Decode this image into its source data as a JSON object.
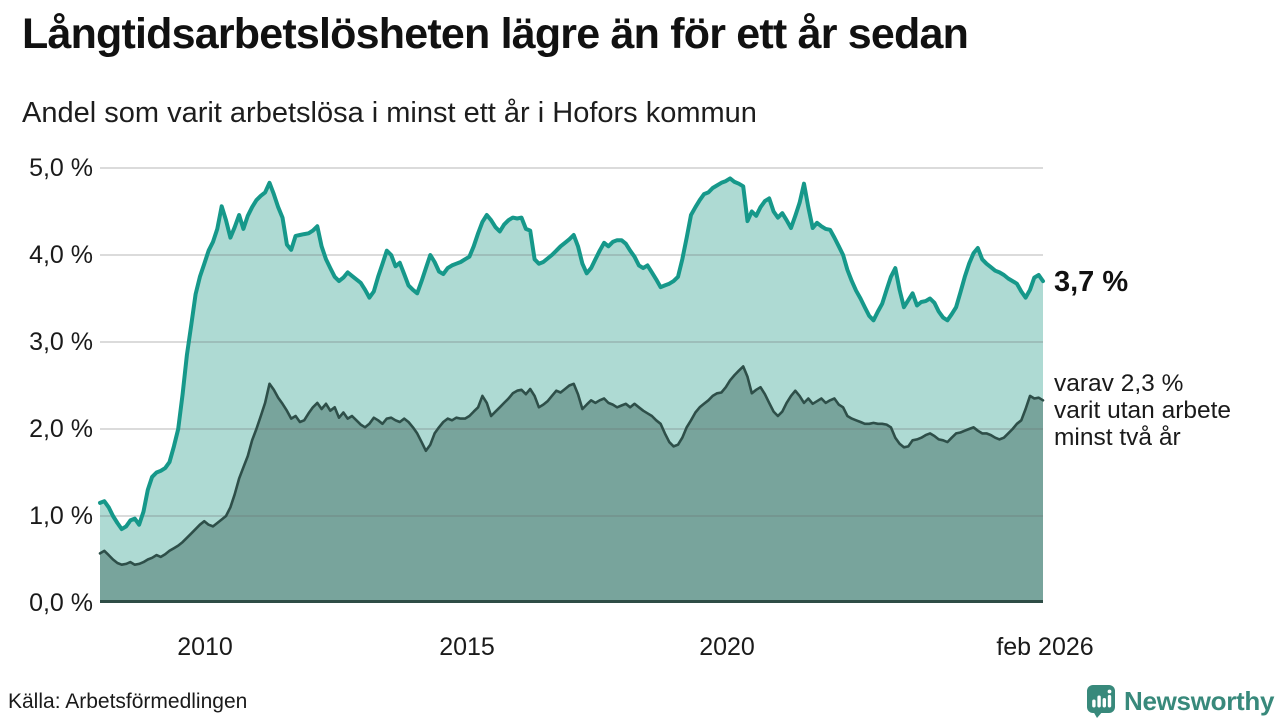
{
  "title": "Långtidsarbetslösheten lägre än för ett år sedan",
  "subtitle": "Andel som varit arbetslösa i minst ett år i Hofors kommun",
  "source": "Källa: Arbetsförmedlingen",
  "logo": {
    "text": "Newsworthy",
    "color": "#38897b"
  },
  "annotations": {
    "latest_value": "3,7 %",
    "breakdown_line1": "varav 2,3 %",
    "breakdown_line2": "varit utan arbete",
    "breakdown_line3": "minst två år"
  },
  "chart_data": {
    "type": "area",
    "title": "Andel som varit arbetslösa i minst ett år i Hofors kommun",
    "unit": "%",
    "x_frequency": "monthly",
    "x_start": "2008-01",
    "x_end": "2026-02",
    "x_domain": [
      2008.0,
      2026.0833
    ],
    "ylim": [
      0,
      5
    ],
    "grid": true,
    "y_ticks": [
      "5,0 %",
      "4,0 %",
      "3,0 %",
      "2,0 %",
      "1,0 %",
      "0,0 %"
    ],
    "x_ticks": [
      {
        "label": "2010",
        "t": 2010.0
      },
      {
        "label": "2015",
        "t": 2015.0
      },
      {
        "label": "2020",
        "t": 2020.0
      },
      {
        "label": "feb 2026",
        "t": 2026.0833
      }
    ],
    "axis_color": "#2e4d46",
    "grid_color": "#6d6d6d",
    "series": [
      {
        "name": "Arbetslösa minst ett år",
        "color": "#16988a",
        "fill": "#aedad3",
        "latest": 3.7,
        "values": [
          1.15,
          1.17,
          1.1,
          1.0,
          0.92,
          0.85,
          0.88,
          0.95,
          0.97,
          0.9,
          1.05,
          1.3,
          1.45,
          1.5,
          1.52,
          1.55,
          1.62,
          1.8,
          2.0,
          2.4,
          2.85,
          3.2,
          3.55,
          3.75,
          3.9,
          4.05,
          4.15,
          4.3,
          4.56,
          4.4,
          4.2,
          4.32,
          4.46,
          4.3,
          4.45,
          4.55,
          4.63,
          4.68,
          4.72,
          4.83,
          4.7,
          4.55,
          4.43,
          4.12,
          4.06,
          4.22,
          4.23,
          4.24,
          4.25,
          4.28,
          4.33,
          4.1,
          3.95,
          3.85,
          3.75,
          3.7,
          3.74,
          3.8,
          3.76,
          3.72,
          3.68,
          3.6,
          3.51,
          3.58,
          3.75,
          3.9,
          4.05,
          4.0,
          3.87,
          3.91,
          3.78,
          3.65,
          3.6,
          3.56,
          3.7,
          3.85,
          4.0,
          3.92,
          3.81,
          3.78,
          3.85,
          3.88,
          3.9,
          3.92,
          3.95,
          3.98,
          4.1,
          4.25,
          4.38,
          4.46,
          4.4,
          4.32,
          4.27,
          4.35,
          4.4,
          4.43,
          4.42,
          4.43,
          4.3,
          4.28,
          3.95,
          3.9,
          3.92,
          3.96,
          4.0,
          4.05,
          4.1,
          4.14,
          4.18,
          4.23,
          4.1,
          3.9,
          3.79,
          3.85,
          3.95,
          4.05,
          4.14,
          4.1,
          4.15,
          4.17,
          4.17,
          4.13,
          4.05,
          3.98,
          3.88,
          3.85,
          3.88,
          3.8,
          3.72,
          3.63,
          3.65,
          3.67,
          3.7,
          3.75,
          3.95,
          4.2,
          4.46,
          4.55,
          4.63,
          4.7,
          4.72,
          4.77,
          4.8,
          4.83,
          4.85,
          4.88,
          4.84,
          4.82,
          4.79,
          4.39,
          4.5,
          4.45,
          4.55,
          4.62,
          4.65,
          4.5,
          4.43,
          4.48,
          4.4,
          4.31,
          4.45,
          4.6,
          4.82,
          4.55,
          4.31,
          4.37,
          4.33,
          4.3,
          4.29,
          4.2,
          4.1,
          4.0,
          3.83,
          3.7,
          3.59,
          3.5,
          3.4,
          3.3,
          3.25,
          3.35,
          3.44,
          3.6,
          3.75,
          3.85,
          3.6,
          3.4,
          3.48,
          3.56,
          3.42,
          3.46,
          3.47,
          3.5,
          3.45,
          3.35,
          3.28,
          3.25,
          3.32,
          3.4,
          3.57,
          3.75,
          3.9,
          4.02,
          4.08,
          3.95,
          3.9,
          3.86,
          3.82,
          3.8,
          3.77,
          3.73,
          3.7,
          3.67,
          3.58,
          3.51,
          3.6,
          3.74,
          3.77,
          3.7
        ]
      },
      {
        "name": "Varav utan arbete minst två år",
        "color": "#2e4f49",
        "fill": "#78a49c",
        "latest": 2.3,
        "values": [
          0.57,
          0.6,
          0.55,
          0.5,
          0.46,
          0.44,
          0.45,
          0.47,
          0.44,
          0.45,
          0.47,
          0.5,
          0.52,
          0.55,
          0.53,
          0.56,
          0.6,
          0.63,
          0.66,
          0.7,
          0.75,
          0.8,
          0.85,
          0.9,
          0.94,
          0.9,
          0.88,
          0.92,
          0.96,
          1.0,
          1.1,
          1.25,
          1.43,
          1.56,
          1.69,
          1.87,
          2.0,
          2.15,
          2.3,
          2.52,
          2.45,
          2.36,
          2.29,
          2.21,
          2.12,
          2.15,
          2.08,
          2.1,
          2.18,
          2.25,
          2.3,
          2.23,
          2.29,
          2.21,
          2.25,
          2.13,
          2.19,
          2.12,
          2.15,
          2.1,
          2.05,
          2.02,
          2.06,
          2.13,
          2.1,
          2.06,
          2.12,
          2.13,
          2.1,
          2.08,
          2.12,
          2.08,
          2.02,
          1.95,
          1.85,
          1.75,
          1.82,
          1.95,
          2.02,
          2.08,
          2.12,
          2.1,
          2.13,
          2.12,
          2.12,
          2.15,
          2.2,
          2.25,
          2.38,
          2.3,
          2.15,
          2.2,
          2.25,
          2.3,
          2.35,
          2.41,
          2.44,
          2.45,
          2.4,
          2.46,
          2.38,
          2.25,
          2.28,
          2.32,
          2.38,
          2.44,
          2.42,
          2.46,
          2.5,
          2.52,
          2.4,
          2.23,
          2.28,
          2.33,
          2.3,
          2.33,
          2.35,
          2.3,
          2.28,
          2.25,
          2.27,
          2.29,
          2.25,
          2.29,
          2.25,
          2.21,
          2.18,
          2.15,
          2.1,
          2.06,
          1.95,
          1.85,
          1.8,
          1.82,
          1.9,
          2.02,
          2.1,
          2.19,
          2.25,
          2.29,
          2.33,
          2.38,
          2.41,
          2.42,
          2.48,
          2.56,
          2.62,
          2.67,
          2.72,
          2.6,
          2.41,
          2.45,
          2.48,
          2.4,
          2.3,
          2.2,
          2.15,
          2.2,
          2.3,
          2.38,
          2.44,
          2.38,
          2.3,
          2.35,
          2.29,
          2.32,
          2.35,
          2.3,
          2.33,
          2.35,
          2.28,
          2.25,
          2.15,
          2.12,
          2.1,
          2.08,
          2.06,
          2.06,
          2.07,
          2.06,
          2.06,
          2.05,
          2.02,
          1.9,
          1.83,
          1.79,
          1.8,
          1.87,
          1.88,
          1.9,
          1.93,
          1.95,
          1.92,
          1.88,
          1.87,
          1.85,
          1.9,
          1.95,
          1.96,
          1.98,
          2.0,
          2.02,
          1.98,
          1.95,
          1.95,
          1.93,
          1.9,
          1.88,
          1.9,
          1.95,
          2.0,
          2.06,
          2.1,
          2.23,
          2.38,
          2.35,
          2.36,
          2.33
        ]
      }
    ]
  }
}
